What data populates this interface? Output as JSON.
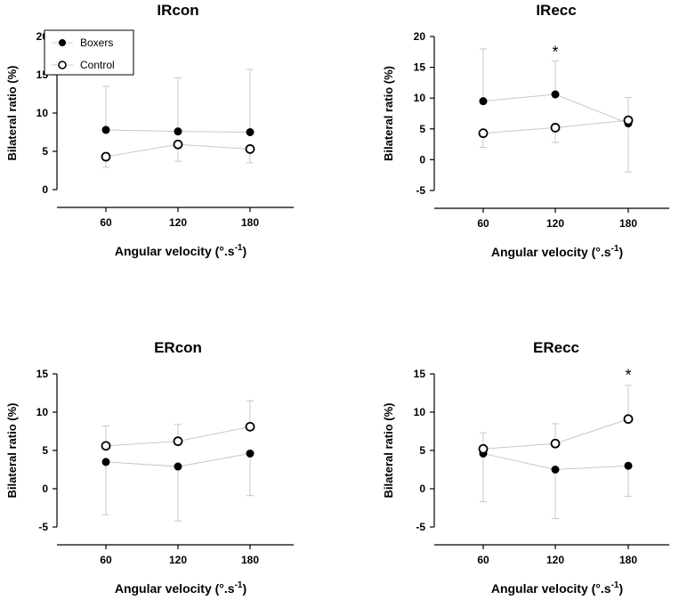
{
  "chart_data": [
    {
      "type": "line",
      "title": "IRcon",
      "xlabel": "Angular velocity (°.s",
      "xlabel_sup": "-1",
      "xlabel_end": ")",
      "ylabel": "Bilateral ratio (%)",
      "categories": [
        "60",
        "120",
        "180"
      ],
      "ylim": [
        0,
        20
      ],
      "yticks": [
        0,
        5,
        10,
        15,
        20
      ],
      "legend": "top-left",
      "series": [
        {
          "name": "Boxers",
          "marker": "filled",
          "values": [
            7.8,
            7.6,
            7.5
          ],
          "err_hi": [
            13.5,
            14.6,
            15.7
          ],
          "err_lo": [
            null,
            null,
            null
          ]
        },
        {
          "name": "Control",
          "marker": "open",
          "values": [
            4.3,
            5.9,
            5.3
          ],
          "err_hi": [
            null,
            null,
            null
          ],
          "err_lo": [
            2.9,
            3.7,
            3.5
          ]
        }
      ],
      "annotations": []
    },
    {
      "type": "line",
      "title": "IRecc",
      "xlabel": "Angular velocity (°.s",
      "xlabel_sup": "-1",
      "xlabel_end": ")",
      "ylabel": "Bilateral ratio (%)",
      "categories": [
        "60",
        "120",
        "180"
      ],
      "ylim": [
        -5,
        20
      ],
      "yticks": [
        -5,
        0,
        5,
        10,
        15,
        20
      ],
      "series": [
        {
          "name": "Boxers",
          "marker": "filled",
          "values": [
            9.5,
            10.6,
            5.9
          ],
          "err_hi": [
            18.0,
            16.0,
            null
          ],
          "err_lo": [
            null,
            null,
            -2.0
          ]
        },
        {
          "name": "Control",
          "marker": "open",
          "values": [
            4.3,
            5.2,
            6.4
          ],
          "err_hi": [
            null,
            null,
            10.1
          ],
          "err_lo": [
            2.0,
            2.8,
            null
          ]
        }
      ],
      "annotations": [
        {
          "text": "*",
          "category": "120",
          "y": 17.5
        }
      ]
    },
    {
      "type": "line",
      "title": "ERcon",
      "xlabel": "Angular velocity (°.s",
      "xlabel_sup": "-1",
      "xlabel_end": ")",
      "ylabel": "Bilateral ratio (%)",
      "categories": [
        "60",
        "120",
        "180"
      ],
      "ylim": [
        -5,
        15
      ],
      "yticks": [
        -5,
        0,
        5,
        10,
        15
      ],
      "series": [
        {
          "name": "Boxers",
          "marker": "filled",
          "values": [
            3.5,
            2.9,
            4.6
          ],
          "err_hi": [
            null,
            null,
            null
          ],
          "err_lo": [
            -3.4,
            -4.2,
            -0.9
          ]
        },
        {
          "name": "Control",
          "marker": "open",
          "values": [
            5.6,
            6.2,
            8.1
          ],
          "err_hi": [
            8.2,
            8.4,
            11.5
          ],
          "err_lo": [
            null,
            null,
            null
          ]
        }
      ],
      "annotations": []
    },
    {
      "type": "line",
      "title": "ERecc",
      "xlabel": "Angular velocity (°.s",
      "xlabel_sup": "-1",
      "xlabel_end": ")",
      "ylabel": "Bilateral ratio (%)",
      "categories": [
        "60",
        "120",
        "180"
      ],
      "ylim": [
        -5,
        15
      ],
      "yticks": [
        -5,
        0,
        5,
        10,
        15
      ],
      "series": [
        {
          "name": "Boxers",
          "marker": "filled",
          "values": [
            4.6,
            2.5,
            3.0
          ],
          "err_hi": [
            null,
            null,
            null
          ],
          "err_lo": [
            -1.7,
            -3.9,
            -1.0
          ]
        },
        {
          "name": "Control",
          "marker": "open",
          "values": [
            5.2,
            5.9,
            9.1
          ],
          "err_hi": [
            7.3,
            8.5,
            13.5
          ],
          "err_lo": [
            null,
            null,
            null
          ]
        }
      ],
      "annotations": [
        {
          "text": "*",
          "category": "180",
          "y": 14.8
        }
      ]
    }
  ],
  "legend": {
    "items": [
      {
        "label": "Boxers",
        "marker": "filled"
      },
      {
        "label": "Control",
        "marker": "open"
      }
    ]
  },
  "colors": {
    "line": "#c8c8c8",
    "marker_stroke": "#000000",
    "marker_fill_filled": "#000000",
    "marker_fill_open": "#ffffff",
    "axis": "#000000"
  }
}
